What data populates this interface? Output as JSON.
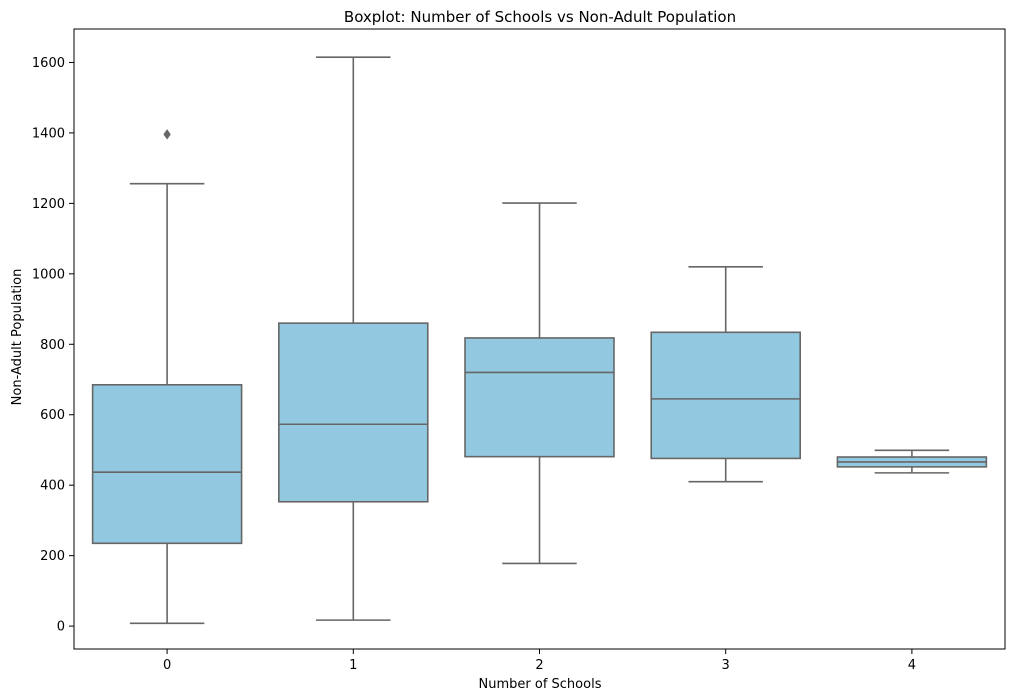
{
  "chart_data": {
    "type": "box",
    "title": "Boxplot: Number of Schools vs Non-Adult Population",
    "xlabel": "Number of Schools",
    "ylabel": "Non-Adult Population",
    "ylim": [
      -65,
      1695
    ],
    "yticks": [
      0,
      200,
      400,
      600,
      800,
      1000,
      1200,
      1400,
      1600
    ],
    "grid": false,
    "legend": "none",
    "colors": {
      "box_fill": "#92c9e0",
      "line": "#666666",
      "axis": "#000000"
    },
    "boxes": [
      {
        "category": "0",
        "whisker_low": 8,
        "q1": 235,
        "median": 437,
        "q3": 685,
        "whisker_high": 1256,
        "outliers": [
          1396
        ]
      },
      {
        "category": "1",
        "whisker_low": 17,
        "q1": 353,
        "median": 573,
        "q3": 860,
        "whisker_high": 1615,
        "outliers": []
      },
      {
        "category": "2",
        "whisker_low": 178,
        "q1": 481,
        "median": 720,
        "q3": 818,
        "whisker_high": 1201,
        "outliers": []
      },
      {
        "category": "3",
        "whisker_low": 410,
        "q1": 476,
        "median": 645,
        "q3": 834,
        "whisker_high": 1020,
        "outliers": []
      },
      {
        "category": "4",
        "whisker_low": 435,
        "q1": 452,
        "median": 466,
        "q3": 480,
        "whisker_high": 499,
        "outliers": []
      }
    ]
  }
}
